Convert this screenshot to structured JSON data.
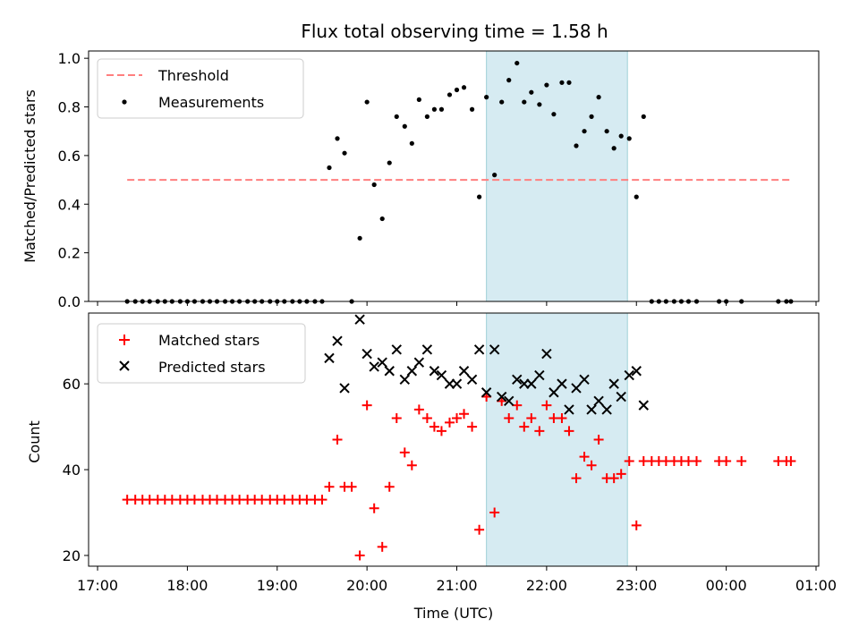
{
  "chart_data": [
    {
      "type": "scatter",
      "title": "Flux total observing time = 1.58 h",
      "xlabel": "",
      "ylabel": "Matched/Predicted stars",
      "ylim": [
        0,
        1.03
      ],
      "yticks": [
        "0.0",
        "0.2",
        "0.4",
        "0.6",
        "0.8",
        "1.0"
      ],
      "yticks_values": [
        0,
        0.2,
        0.4,
        0.6,
        0.8,
        1.0
      ],
      "highlight_span": {
        "x_start": 21.33,
        "x_end": 22.9,
        "color": "#add8e6"
      },
      "legend": {
        "placement": "upper-left",
        "entries": [
          "Threshold",
          "Measurements"
        ]
      },
      "series": [
        {
          "name": "Threshold",
          "kind": "dashed-line",
          "color": "#ff7f7f",
          "x": [
            17.33,
            20.0,
            24.72
          ],
          "values": [
            0.5,
            0.5,
            0.5
          ]
        },
        {
          "name": "Measurements",
          "kind": "points",
          "color": "#000000",
          "x": [
            17.33,
            17.42,
            17.5,
            17.58,
            17.67,
            17.75,
            17.83,
            17.92,
            18.0,
            18.08,
            18.17,
            18.25,
            18.33,
            18.42,
            18.5,
            18.58,
            18.67,
            18.75,
            18.83,
            18.92,
            19.0,
            19.08,
            19.17,
            19.25,
            19.33,
            19.42,
            19.5,
            19.58,
            19.67,
            19.75,
            19.83,
            19.92,
            20.0,
            20.08,
            20.17,
            20.25,
            20.33,
            20.42,
            20.5,
            20.58,
            20.67,
            20.75,
            20.83,
            20.92,
            21.0,
            21.08,
            21.17,
            21.25,
            21.33,
            21.42,
            21.5,
            21.58,
            21.67,
            21.75,
            21.83,
            21.92,
            22.0,
            22.08,
            22.17,
            22.25,
            22.33,
            22.42,
            22.5,
            22.58,
            22.67,
            22.75,
            22.83,
            22.92,
            23.0,
            23.08,
            23.17,
            23.25,
            23.33,
            23.42,
            23.5,
            23.58,
            23.67,
            23.92,
            24.0,
            24.17,
            24.58,
            24.67,
            24.72
          ],
          "values": [
            0,
            0,
            0,
            0,
            0,
            0,
            0,
            0,
            0,
            0,
            0,
            0,
            0,
            0,
            0,
            0,
            0,
            0,
            0,
            0,
            0,
            0,
            0,
            0,
            0,
            0,
            0,
            0.55,
            0.67,
            0.61,
            0,
            0.26,
            0.82,
            0.48,
            0.34,
            0.57,
            0.76,
            0.72,
            0.65,
            0.83,
            0.76,
            0.79,
            0.79,
            0.85,
            0.87,
            0.88,
            0.79,
            0.43,
            0.84,
            0.52,
            0.82,
            0.91,
            0.98,
            0.82,
            0.86,
            0.81,
            0.89,
            0.77,
            0.9,
            0.9,
            0.64,
            0.7,
            0.76,
            0.84,
            0.7,
            0.63,
            0.68,
            0.67,
            0.43,
            0.76,
            0,
            0,
            0,
            0,
            0,
            0,
            0,
            0,
            0,
            0,
            0,
            0,
            0
          ]
        }
      ]
    },
    {
      "type": "scatter",
      "xlabel": "Time (UTC)",
      "ylabel": "Count",
      "ylim": [
        17.5,
        76.5
      ],
      "yticks": [
        "20",
        "40",
        "60"
      ],
      "yticks_values": [
        20,
        40,
        60
      ],
      "xticks": [
        "17:00",
        "18:00",
        "19:00",
        "20:00",
        "21:00",
        "22:00",
        "23:00",
        "00:00",
        "01:00"
      ],
      "xticks_values": [
        17,
        18,
        19,
        20,
        21,
        22,
        23,
        24,
        25
      ],
      "xlim": [
        16.9,
        25.03
      ],
      "highlight_span": {
        "x_start": 21.33,
        "x_end": 22.9,
        "color": "#add8e6"
      },
      "legend": {
        "placement": "upper-left",
        "entries": [
          "Matched stars",
          "Predicted stars"
        ]
      },
      "series": [
        {
          "name": "Matched stars",
          "kind": "plus",
          "color": "#ff0000",
          "x": [
            17.33,
            17.42,
            17.5,
            17.58,
            17.67,
            17.75,
            17.83,
            17.92,
            18.0,
            18.08,
            18.17,
            18.25,
            18.33,
            18.42,
            18.5,
            18.58,
            18.67,
            18.75,
            18.83,
            18.92,
            19.0,
            19.08,
            19.17,
            19.25,
            19.33,
            19.42,
            19.5,
            19.58,
            19.67,
            19.75,
            19.83,
            19.92,
            20.0,
            20.08,
            20.17,
            20.25,
            20.33,
            20.42,
            20.5,
            20.58,
            20.67,
            20.75,
            20.83,
            20.92,
            21.0,
            21.08,
            21.17,
            21.25,
            21.33,
            21.42,
            21.5,
            21.58,
            21.67,
            21.75,
            21.83,
            21.92,
            22.0,
            22.08,
            22.17,
            22.25,
            22.33,
            22.42,
            22.5,
            22.58,
            22.67,
            22.75,
            22.83,
            22.92,
            23.0,
            23.08,
            23.17,
            23.25,
            23.33,
            23.42,
            23.5,
            23.58,
            23.67,
            23.92,
            24.0,
            24.17,
            24.58,
            24.67,
            24.72
          ],
          "values": [
            33,
            33,
            33,
            33,
            33,
            33,
            33,
            33,
            33,
            33,
            33,
            33,
            33,
            33,
            33,
            33,
            33,
            33,
            33,
            33,
            33,
            33,
            33,
            33,
            33,
            33,
            33,
            36,
            47,
            36,
            36,
            20,
            55,
            31,
            22,
            36,
            52,
            44,
            41,
            54,
            52,
            50,
            49,
            51,
            52,
            53,
            50,
            26,
            57,
            30,
            56,
            52,
            55,
            50,
            52,
            49,
            55,
            52,
            52,
            49,
            38,
            43,
            41,
            47,
            38,
            38,
            39,
            42,
            27,
            42,
            42,
            42,
            42,
            42,
            42,
            42,
            42,
            42,
            42,
            42,
            42,
            42,
            42
          ]
        },
        {
          "name": "Predicted stars",
          "kind": "cross",
          "color": "#000000",
          "x": [
            19.58,
            19.67,
            19.75,
            19.92,
            20.0,
            20.08,
            20.17,
            20.25,
            20.33,
            20.42,
            20.5,
            20.58,
            20.67,
            20.75,
            20.83,
            20.92,
            21.0,
            21.08,
            21.17,
            21.25,
            21.33,
            21.42,
            21.5,
            21.58,
            21.67,
            21.75,
            21.83,
            21.92,
            22.0,
            22.08,
            22.17,
            22.25,
            22.33,
            22.42,
            22.5,
            22.58,
            22.67,
            22.75,
            22.83,
            22.92,
            23.0,
            23.08
          ],
          "values": [
            66,
            70,
            59,
            75,
            67,
            64,
            65,
            63,
            68,
            61,
            63,
            65,
            68,
            63,
            62,
            60,
            60,
            63,
            61,
            68,
            58,
            68,
            57,
            56,
            61,
            60,
            60,
            62,
            67,
            58,
            60,
            54,
            59,
            61,
            54,
            56,
            54,
            60,
            57,
            62,
            63,
            55
          ]
        }
      ]
    }
  ]
}
